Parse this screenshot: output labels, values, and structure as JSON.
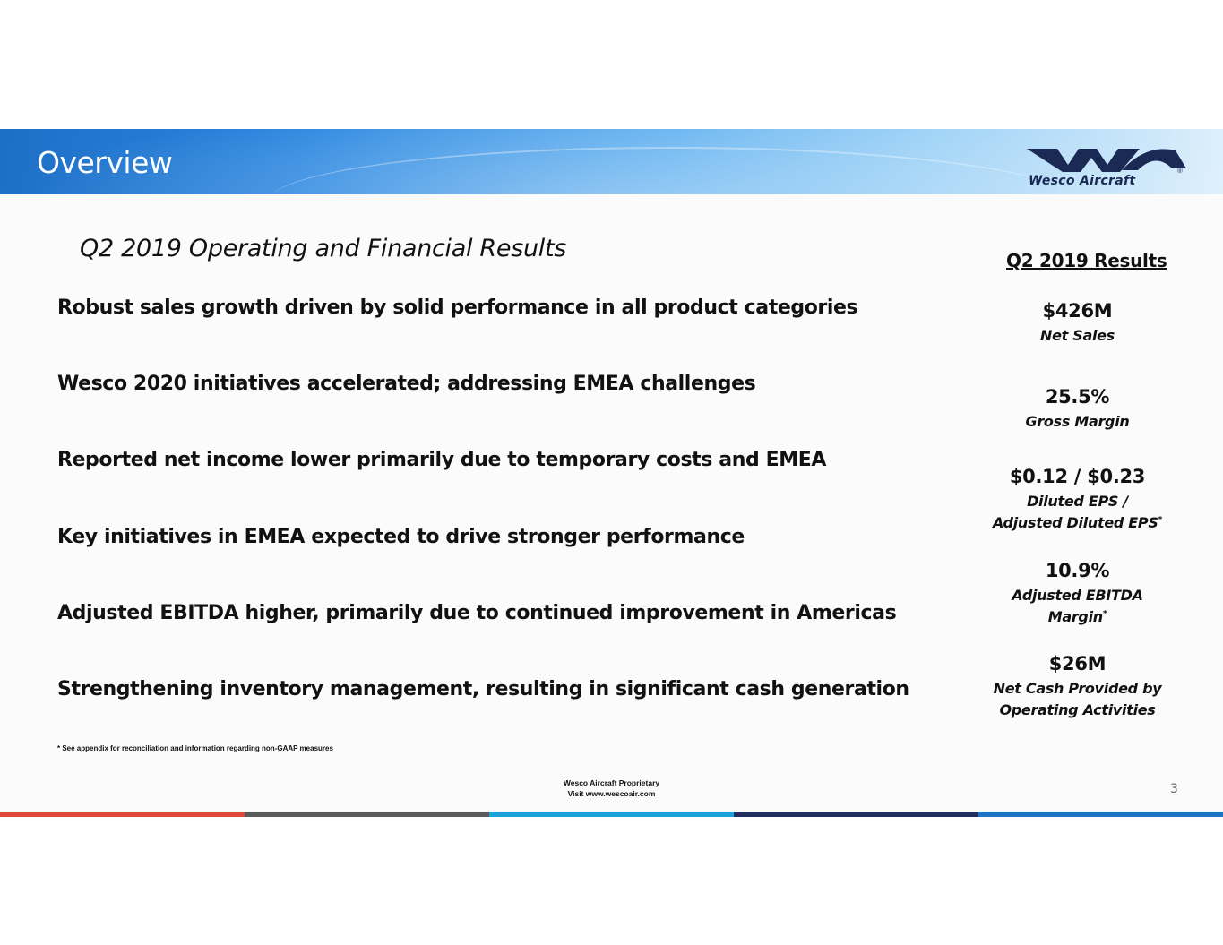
{
  "header": {
    "title": "Overview",
    "logo_text": "Wesco Aircraft",
    "logo_mark": "®"
  },
  "subtitle": "Q2 2019 Operating and Financial Results",
  "bullets": [
    "Robust sales growth driven by solid performance in all product categories",
    "Wesco 2020 initiatives accelerated; addressing EMEA challenges",
    "Reported net income lower primarily due to temporary costs and EMEA",
    "Key initiatives in EMEA expected to drive stronger performance",
    "Adjusted EBITDA higher, primarily due to continued improvement in Americas",
    "Strengthening inventory management, resulting in significant cash generation"
  ],
  "results": {
    "header": "Q2 2019 Results",
    "metrics": [
      {
        "value": "$426M",
        "label_line1": "Net Sales",
        "label_line2": ""
      },
      {
        "value": "25.5%",
        "label_line1": "Gross Margin",
        "label_line2": ""
      },
      {
        "value": "$0.12 / $0.23",
        "label_line1": "Diluted EPS /",
        "label_line2": "Adjusted Diluted EPS",
        "label_line2_mark": "*"
      },
      {
        "value": "10.9%",
        "label_line1": "Adjusted EBITDA",
        "label_line2": "Margin",
        "label_line2_mark": "*"
      },
      {
        "value": "$26M",
        "label_line1": "Net Cash Provided by",
        "label_line2": "Operating Activities"
      }
    ]
  },
  "footnote": "* See appendix for reconciliation and information regarding non-GAAP measures",
  "footer": {
    "line1": "Wesco Aircraft Proprietary",
    "line2": "Visit www.wescoair.com",
    "page_number": "3"
  },
  "colors": {
    "header_blue": "#2a86e0",
    "logo_navy": "#1a2a55",
    "bar": [
      "#e0463a",
      "#5a5a5a",
      "#1aa3d8",
      "#1f2d5c",
      "#1d74c4"
    ]
  }
}
